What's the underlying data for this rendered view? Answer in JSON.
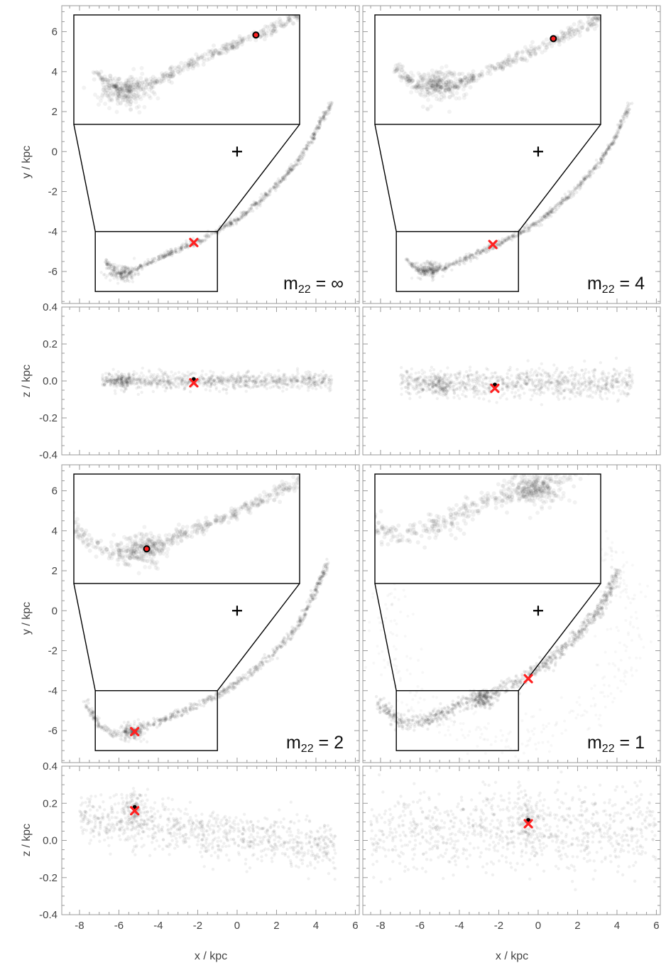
{
  "figure": {
    "axes": {
      "x": {
        "label": "x / kpc",
        "lim": [
          -8.9,
          6.2
        ],
        "ticks": [
          -8,
          -6,
          -4,
          -2,
          0,
          2,
          4,
          6
        ]
      },
      "y": {
        "label": "y / kpc",
        "lim": [
          -7.6,
          7.3
        ],
        "ticks": [
          -6,
          -4,
          -2,
          0,
          2,
          4,
          6
        ]
      },
      "z": {
        "label": "z / kpc",
        "lim": [
          -0.4,
          0.4
        ],
        "ticks": [
          -0.4,
          -0.2,
          0.0,
          0.2,
          0.4
        ],
        "tick_labels": [
          "-0.4",
          "-0.2",
          "0.0",
          "0.2",
          "0.4"
        ]
      }
    },
    "zoom_region": {
      "x": [
        -7.2,
        -1.0
      ],
      "y": [
        -7.0,
        -4.0
      ]
    },
    "center_marker": {
      "x": 0,
      "y": 0,
      "symbol": "+"
    },
    "colors": {
      "stream": "#000000",
      "marker": "#ff2020",
      "frame": "#9a9a9a"
    }
  },
  "chart_data": [
    {
      "type": "scatter",
      "panel": "xy",
      "prefix": "m",
      "subscript": "22",
      "suffix": " = ∞",
      "xlabel": "",
      "ylabel": "y / kpc",
      "stream": [
        [
          -6.7,
          -5.5
        ],
        [
          -6.0,
          -6.1
        ],
        [
          -5.0,
          -5.8
        ],
        [
          -4.0,
          -5.35
        ],
        [
          -3.0,
          -4.9
        ],
        [
          -2.0,
          -4.5
        ],
        [
          -1.0,
          -4.0
        ],
        [
          0.0,
          -3.4
        ],
        [
          1.0,
          -2.6
        ],
        [
          2.0,
          -1.7
        ],
        [
          3.0,
          -0.6
        ],
        [
          3.8,
          0.6
        ],
        [
          4.3,
          1.6
        ],
        [
          4.8,
          2.4
        ]
      ],
      "clump": {
        "x": -5.8,
        "y": -6.1
      },
      "progenitor": {
        "x": -2.2,
        "y": -4.55
      }
    },
    {
      "type": "scatter",
      "panel": "xz",
      "prefix": "m",
      "subscript": "22",
      "suffix": " = ∞",
      "xlabel": "",
      "ylabel": "z / kpc",
      "x_range": [
        -6.9,
        4.8
      ],
      "z_center": 0.0,
      "z_spread": 0.04,
      "clump": {
        "x": -5.8,
        "z": 0.0
      },
      "progenitor": {
        "x": -2.2,
        "z": -0.01
      }
    },
    {
      "type": "scatter",
      "panel": "xy",
      "prefix": "m",
      "subscript": "22",
      "suffix": " = 4",
      "xlabel": "",
      "ylabel": "",
      "stream": [
        [
          -6.7,
          -5.4
        ],
        [
          -6.0,
          -6.0
        ],
        [
          -5.0,
          -5.9
        ],
        [
          -4.0,
          -5.5
        ],
        [
          -3.0,
          -5.05
        ],
        [
          -2.0,
          -4.6
        ],
        [
          -1.0,
          -4.1
        ],
        [
          0.0,
          -3.5
        ],
        [
          1.0,
          -2.7
        ],
        [
          2.0,
          -1.8
        ],
        [
          3.0,
          -0.7
        ],
        [
          3.8,
          0.5
        ],
        [
          4.3,
          1.6
        ],
        [
          4.7,
          2.4
        ]
      ],
      "clump": {
        "x": -5.5,
        "y": -5.9
      },
      "progenitor": {
        "x": -2.3,
        "y": -4.65
      }
    },
    {
      "type": "scatter",
      "panel": "xz",
      "prefix": "m",
      "subscript": "22",
      "suffix": " = 4",
      "xlabel": "",
      "ylabel": "",
      "x_range": [
        -7.0,
        4.8
      ],
      "z_center": -0.01,
      "z_spread": 0.07,
      "clump": {
        "x": -5.0,
        "z": -0.02
      },
      "progenitor": {
        "x": -2.2,
        "z": -0.04
      }
    },
    {
      "type": "scatter",
      "panel": "xy",
      "prefix": "m",
      "subscript": "22",
      "suffix": " = 2",
      "xlabel": "",
      "ylabel": "y / kpc",
      "stream": [
        [
          -7.7,
          -4.6
        ],
        [
          -7.0,
          -5.7
        ],
        [
          -6.2,
          -6.2
        ],
        [
          -5.2,
          -6.0
        ],
        [
          -4.0,
          -5.55
        ],
        [
          -3.0,
          -5.15
        ],
        [
          -2.0,
          -4.7
        ],
        [
          -1.0,
          -4.2
        ],
        [
          0.0,
          -3.6
        ],
        [
          1.0,
          -2.85
        ],
        [
          2.0,
          -2.0
        ],
        [
          3.0,
          -0.9
        ],
        [
          3.7,
          0.3
        ],
        [
          4.2,
          1.5
        ],
        [
          4.6,
          2.4
        ]
      ],
      "clump": {
        "x": -5.3,
        "y": -6.05
      },
      "progenitor": {
        "x": -5.2,
        "y": -6.05
      }
    },
    {
      "type": "scatter",
      "panel": "xz",
      "prefix": "m",
      "subscript": "22",
      "suffix": " = 2",
      "xlabel": "x / kpc",
      "ylabel": "z / kpc",
      "x_range": [
        -8.0,
        5.0
      ],
      "z_center": 0.07,
      "z_spread": 0.12,
      "clump": {
        "x": -5.2,
        "z": 0.17
      },
      "progenitor": {
        "x": -5.2,
        "z": 0.16
      }
    },
    {
      "type": "scatter",
      "panel": "xy",
      "prefix": "m",
      "subscript": "22",
      "suffix": " = 1",
      "xlabel": "",
      "ylabel": "",
      "stream": [
        [
          -8.2,
          -4.5
        ],
        [
          -7.0,
          -5.6
        ],
        [
          -6.0,
          -5.6
        ],
        [
          -5.0,
          -5.2
        ],
        [
          -4.0,
          -4.7
        ],
        [
          -3.0,
          -4.4
        ],
        [
          -2.0,
          -4.0
        ],
        [
          -1.0,
          -3.55
        ],
        [
          0.0,
          -2.9
        ],
        [
          1.0,
          -2.2
        ],
        [
          2.0,
          -1.2
        ],
        [
          3.0,
          -0.1
        ],
        [
          3.6,
          1.0
        ],
        [
          4.1,
          2.0
        ]
      ],
      "clump": {
        "x": -2.8,
        "y": -4.45
      },
      "progenitor": {
        "x": -0.5,
        "y": -3.4
      }
    },
    {
      "type": "scatter",
      "panel": "xz",
      "prefix": "m",
      "subscript": "22",
      "suffix": " = 1",
      "xlabel": "x / kpc",
      "ylabel": "",
      "x_range": [
        -8.5,
        6.0
      ],
      "z_center": 0.05,
      "z_spread": 0.2,
      "clump": {
        "x": -0.5,
        "z": 0.11
      },
      "progenitor": {
        "x": -0.5,
        "z": 0.09
      }
    }
  ]
}
